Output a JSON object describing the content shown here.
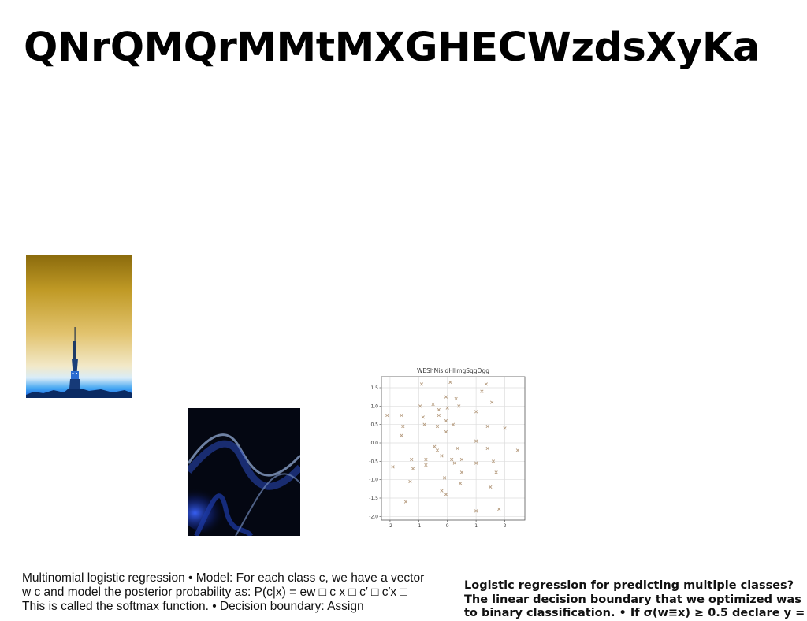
{
  "slide": {
    "title": "QNrQMQrMMtMXGHECWzdsXyKa",
    "body_left": "Multinomial logistic regression • Model: For each class c, we have a vector w c and model the posterior probability as: P(c|x) = ew □ c x □ c′ □ c′x □ This is called the softmax function. • Decision boundary: Assign",
    "body_right_lines": [
      "Logistic regression for predicting multiple classes?",
      "The linear decision boundary that we optimized was",
      "to binary classification. • If σ(w≡x) ≥ 0.5 declare y ="
    ]
  },
  "images": {
    "tower_icon": "tower-photo",
    "wave_icon": "abstract-wave-photo"
  },
  "chart_data": {
    "type": "scatter",
    "title": "WEShNisIdHIlmgSqgOgg",
    "marker": "x",
    "xlim": [
      -2.3,
      2.7
    ],
    "ylim": [
      -2.1,
      1.8
    ],
    "xticks": [
      "-2",
      "-1",
      "0",
      "1",
      "2"
    ],
    "xtick_values": [
      -2,
      -1,
      0,
      1,
      2
    ],
    "yticks": [
      "1.5",
      "1.0",
      "0.5",
      "0.0",
      "-0.5",
      "-1.0",
      "-1.5",
      "-2.0"
    ],
    "ytick_values": [
      1.5,
      1.0,
      0.5,
      0.0,
      -0.5,
      -1.0,
      -1.5,
      -2.0
    ],
    "grid": true,
    "colors": {
      "marker": "#b59b7e",
      "grid": "#dddddd",
      "axis": "#555555"
    },
    "points": [
      [
        -2.1,
        0.75
      ],
      [
        -1.9,
        -0.65
      ],
      [
        -1.6,
        0.75
      ],
      [
        -1.6,
        0.2
      ],
      [
        -1.55,
        0.45
      ],
      [
        -1.45,
        -1.6
      ],
      [
        -1.3,
        -1.05
      ],
      [
        -1.25,
        -0.45
      ],
      [
        -1.2,
        -0.7
      ],
      [
        -0.95,
        1.0
      ],
      [
        -0.9,
        1.6
      ],
      [
        -0.85,
        0.7
      ],
      [
        -0.8,
        0.5
      ],
      [
        -0.75,
        -0.45
      ],
      [
        -0.75,
        -0.6
      ],
      [
        -0.5,
        1.05
      ],
      [
        -0.45,
        -0.1
      ],
      [
        -0.35,
        0.45
      ],
      [
        -0.35,
        -0.2
      ],
      [
        -0.3,
        0.9
      ],
      [
        -0.3,
        0.75
      ],
      [
        -0.2,
        -0.35
      ],
      [
        -0.2,
        -1.3
      ],
      [
        -0.1,
        -0.95
      ],
      [
        -0.05,
        1.25
      ],
      [
        -0.05,
        0.3
      ],
      [
        -0.05,
        0.6
      ],
      [
        0.0,
        0.95
      ],
      [
        -0.05,
        -1.4
      ],
      [
        0.1,
        1.65
      ],
      [
        0.15,
        -0.45
      ],
      [
        0.2,
        0.5
      ],
      [
        0.25,
        -0.55
      ],
      [
        0.3,
        1.2
      ],
      [
        0.35,
        -0.15
      ],
      [
        0.4,
        1.0
      ],
      [
        0.45,
        -1.1
      ],
      [
        0.5,
        -0.45
      ],
      [
        0.5,
        -0.8
      ],
      [
        1.0,
        0.85
      ],
      [
        1.0,
        0.05
      ],
      [
        1.0,
        -0.55
      ],
      [
        1.0,
        -1.85
      ],
      [
        1.2,
        1.4
      ],
      [
        1.35,
        1.6
      ],
      [
        1.4,
        0.45
      ],
      [
        1.4,
        -0.15
      ],
      [
        1.5,
        -1.2
      ],
      [
        1.55,
        1.1
      ],
      [
        1.6,
        -0.5
      ],
      [
        1.7,
        -0.8
      ],
      [
        1.8,
        -1.8
      ],
      [
        2.0,
        0.4
      ],
      [
        2.45,
        -0.2
      ]
    ]
  }
}
